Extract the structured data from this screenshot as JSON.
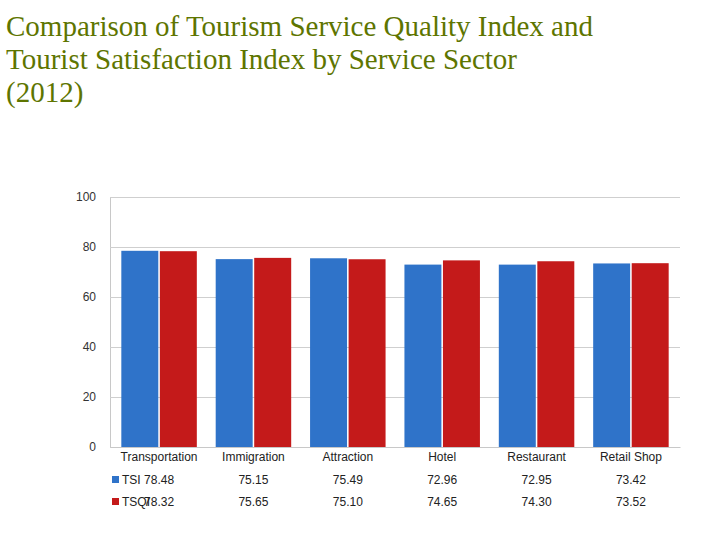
{
  "chart_data": {
    "type": "bar",
    "title": "Comparison of Tourism Service Quality Index and Tourist Satisfaction Index by Service Sector (2012)",
    "categories": [
      "Transportation",
      "Immigration",
      "Attraction",
      "Hotel",
      "Restaurant",
      "Retail Shop"
    ],
    "series": [
      {
        "name": "TSI",
        "color": "#2f73c9",
        "values": [
          78.48,
          75.15,
          75.49,
          72.96,
          72.95,
          73.42
        ],
        "value_labels": [
          "78.48",
          "75.15",
          "75.49",
          "72.96",
          "72.95",
          "73.42"
        ]
      },
      {
        "name": "TSQI",
        "color": "#c41a1a",
        "values": [
          78.32,
          75.65,
          75.1,
          74.65,
          74.3,
          73.52
        ],
        "value_labels": [
          "78.32",
          "75.65",
          "75.10",
          "74.65",
          "74.30",
          "73.52"
        ]
      }
    ],
    "ylim": [
      0,
      100
    ],
    "yticks": [
      0,
      20,
      40,
      60,
      80,
      100
    ],
    "grid": true,
    "data_labels": true
  }
}
